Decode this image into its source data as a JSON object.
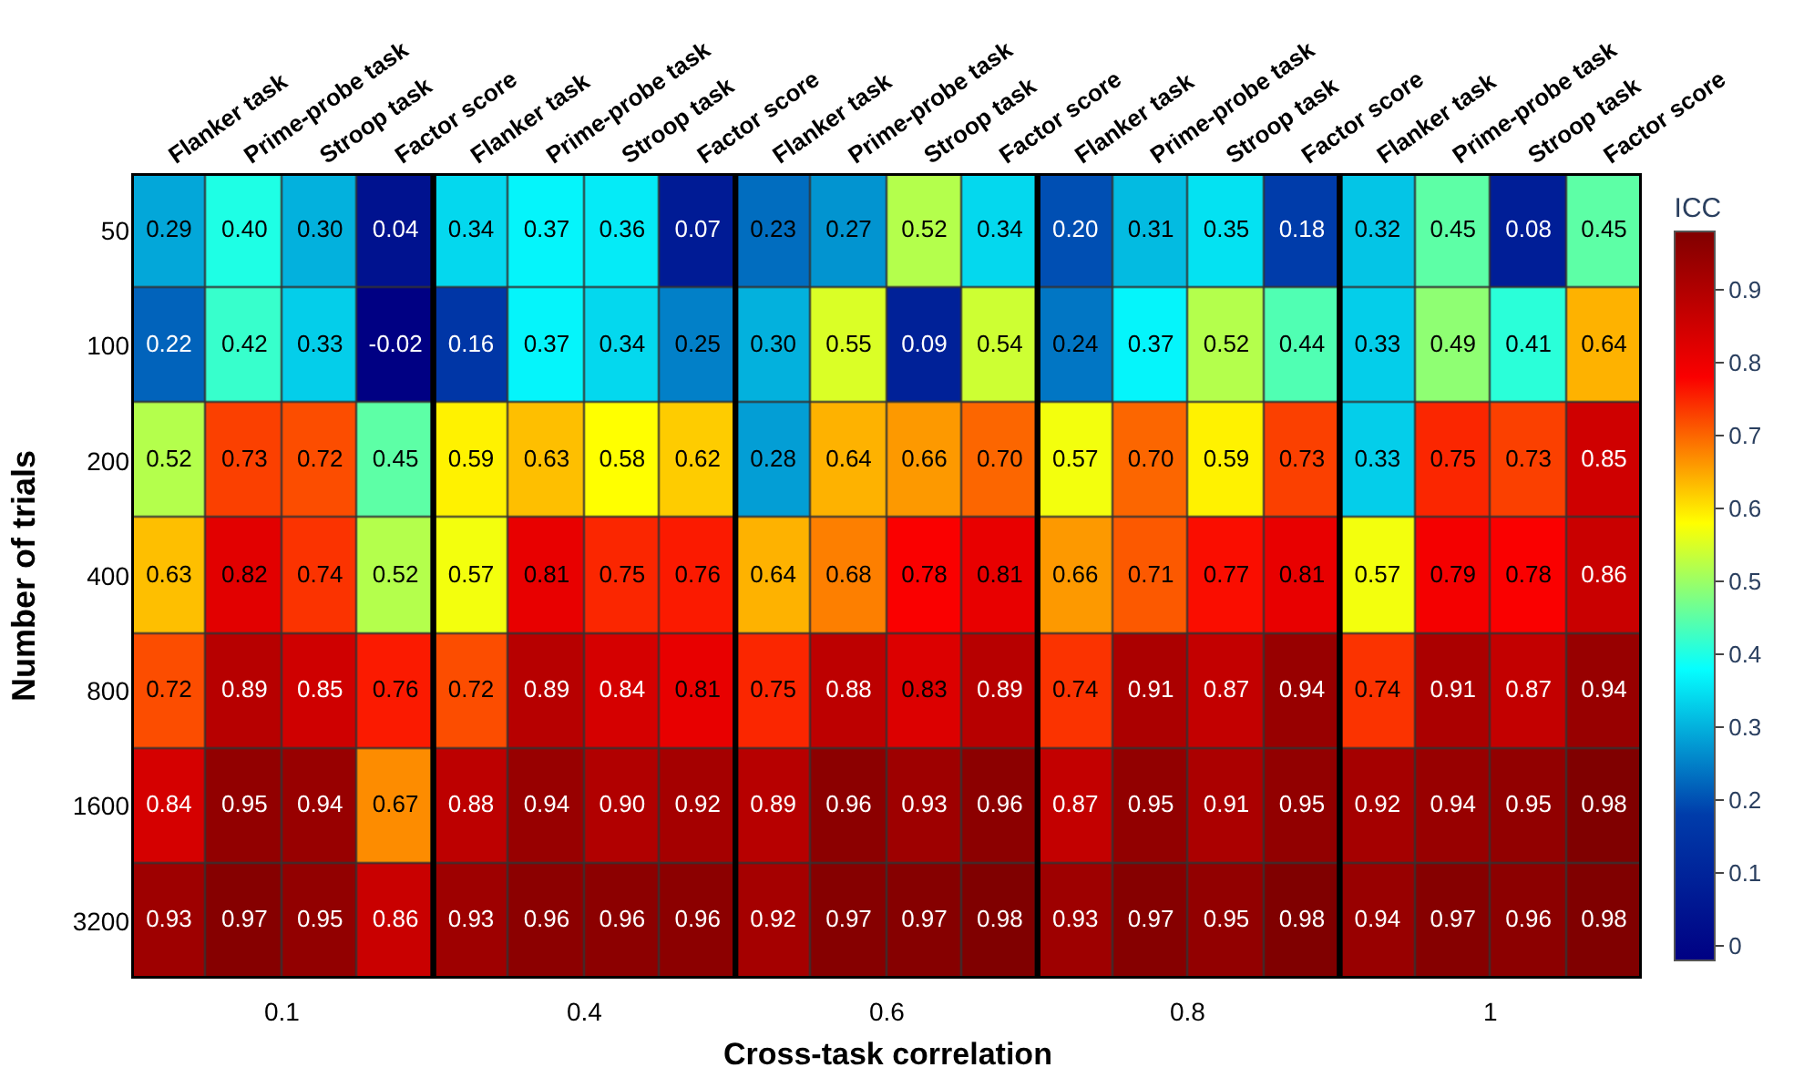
{
  "chart_data": {
    "type": "heatmap",
    "xlabel": "Cross-task correlation",
    "ylabel": "Number of trials",
    "clabel": "ICC",
    "categories": [
      "Flanker task",
      "Prime-probe task",
      "Stroop task",
      "Factor score",
      "Flanker task",
      "Prime-probe task",
      "Stroop task",
      "Factor score",
      "Flanker task",
      "Prime-probe task",
      "Stroop task",
      "Factor score",
      "Flanker task",
      "Prime-probe task",
      "Stroop task",
      "Factor score",
      "Flanker task",
      "Prime-probe task",
      "Stroop task",
      "Factor score"
    ],
    "y_categories": [
      "50",
      "100",
      "200",
      "400",
      "800",
      "1600",
      "3200"
    ],
    "cells": [
      [
        0.29,
        0.4,
        0.3,
        0.04,
        0.34,
        0.37,
        0.36,
        0.07,
        0.23,
        0.27,
        0.52,
        0.34,
        0.2,
        0.31,
        0.35,
        0.18,
        0.32,
        0.45,
        0.08,
        0.45
      ],
      [
        0.22,
        0.42,
        0.33,
        -0.02,
        0.16,
        0.37,
        0.34,
        0.25,
        0.3,
        0.55,
        0.09,
        0.54,
        0.24,
        0.37,
        0.52,
        0.44,
        0.33,
        0.49,
        0.41,
        0.64
      ],
      [
        0.52,
        0.73,
        0.72,
        0.45,
        0.59,
        0.63,
        0.58,
        0.62,
        0.28,
        0.64,
        0.66,
        0.7,
        0.57,
        0.7,
        0.59,
        0.73,
        0.33,
        0.75,
        0.73,
        0.85
      ],
      [
        0.63,
        0.82,
        0.74,
        0.52,
        0.57,
        0.81,
        0.75,
        0.76,
        0.64,
        0.68,
        0.78,
        0.81,
        0.66,
        0.71,
        0.77,
        0.81,
        0.57,
        0.79,
        0.78,
        0.86
      ],
      [
        0.72,
        0.89,
        0.85,
        0.76,
        0.72,
        0.89,
        0.84,
        0.81,
        0.75,
        0.88,
        0.83,
        0.89,
        0.74,
        0.91,
        0.87,
        0.94,
        0.74,
        0.91,
        0.87,
        0.94
      ],
      [
        0.84,
        0.95,
        0.94,
        0.67,
        0.88,
        0.94,
        0.9,
        0.92,
        0.89,
        0.96,
        0.93,
        0.96,
        0.87,
        0.95,
        0.91,
        0.95,
        0.92,
        0.94,
        0.95,
        0.98
      ],
      [
        0.93,
        0.97,
        0.95,
        0.86,
        0.93,
        0.96,
        0.96,
        0.96,
        0.92,
        0.97,
        0.97,
        0.98,
        0.93,
        0.97,
        0.95,
        0.98,
        0.94,
        0.97,
        0.96,
        0.98
      ]
    ],
    "clim": [
      -0.02,
      0.98
    ],
    "cticks": [
      0,
      0.1,
      0.2,
      0.3,
      0.4,
      0.5,
      0.6,
      0.7,
      0.8,
      0.9
    ],
    "cell_labels": [
      [
        "0.29",
        "0.40",
        "0.30",
        "0.04",
        "0.34",
        "0.37",
        "0.36",
        "0.07",
        "0.23",
        "0.27",
        "0.52",
        "0.34",
        "0.20",
        "0.31",
        "0.35",
        "0.18",
        "0.32",
        "0.45",
        "0.08",
        "0.45"
      ],
      [
        "0.22",
        "0.42",
        "0.33",
        "-0.02",
        "0.16",
        "0.37",
        "0.34",
        "0.25",
        "0.30",
        "0.55",
        "0.09",
        "0.54",
        "0.24",
        "0.37",
        "0.52",
        "0.44",
        "0.33",
        "0.49",
        "0.41",
        "0.64"
      ],
      [
        "0.52",
        "0.73",
        "0.72",
        "0.45",
        "0.59",
        "0.63",
        "0.58",
        "0.62",
        "0.28",
        "0.64",
        "0.66",
        "0.70",
        "0.57",
        "0.70",
        "0.59",
        "0.73",
        "0.33",
        "0.75",
        "0.73",
        "0.85"
      ],
      [
        "0.63",
        "0.82",
        "0.74",
        "0.52",
        "0.57",
        "0.81",
        "0.75",
        "0.76",
        "0.64",
        "0.68",
        "0.78",
        "0.81",
        "0.66",
        "0.71",
        "0.77",
        "0.81",
        "0.57",
        "0.79",
        "0.78",
        "0.86"
      ],
      [
        "0.72",
        "0.89",
        "0.85",
        "0.76",
        "0.72",
        "0.89",
        "0.84",
        "0.81",
        "0.75",
        "0.88",
        "0.83",
        "0.89",
        "0.74",
        "0.91",
        "0.87",
        "0.94",
        "0.74",
        "0.91",
        "0.87",
        "0.94"
      ],
      [
        "0.84",
        "0.95",
        "0.94",
        "0.67",
        "0.88",
        "0.94",
        "0.90",
        "0.92",
        "0.89",
        "0.96",
        "0.93",
        "0.96",
        "0.87",
        "0.95",
        "0.91",
        "0.95",
        "0.92",
        "0.94",
        "0.95",
        "0.98"
      ],
      [
        "0.93",
        "0.97",
        "0.95",
        "0.86",
        "0.93",
        "0.96",
        "0.96",
        "0.96",
        "0.92",
        "0.97",
        "0.97",
        "0.98",
        "0.93",
        "0.97",
        "0.95",
        "0.98",
        "0.94",
        "0.97",
        "0.96",
        "0.98"
      ]
    ],
    "annotations": [
      "0.1",
      "0.4",
      "0.6",
      "0.8",
      "1"
    ]
  }
}
